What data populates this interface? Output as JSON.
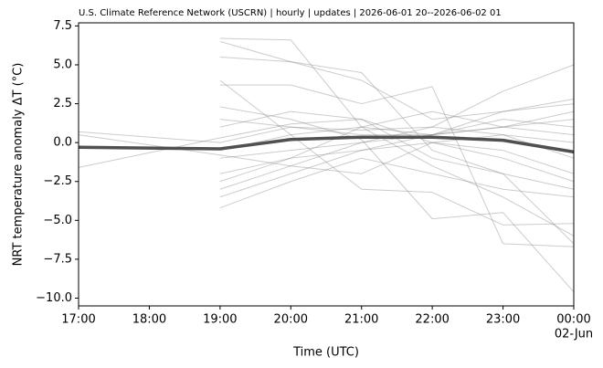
{
  "chart_data": {
    "type": "line",
    "title": "U.S. Climate Reference Network (USCRN) | hourly | updates | 2026-06-01 20--2026-06-02 01",
    "x_label": "Time (UTC)",
    "y_label": "NRT temperature anomaly  ΔT  (°C)",
    "x": [
      17,
      19,
      20,
      21,
      22,
      23,
      24
    ],
    "xlim": [
      17,
      24
    ],
    "xticks": [
      {
        "value": 17,
        "label": "17:00"
      },
      {
        "value": 18,
        "label": "18:00"
      },
      {
        "value": 19,
        "label": "19:00"
      },
      {
        "value": 20,
        "label": "20:00"
      },
      {
        "value": 21,
        "label": "21:00"
      },
      {
        "value": 22,
        "label": "22:00"
      },
      {
        "value": 23,
        "label": "23:00"
      },
      {
        "value": 24,
        "label": "00:00"
      }
    ],
    "x_tick_sublabel": "02-Jun",
    "ylim": [
      -10.5,
      7.7
    ],
    "yticks": [
      {
        "value": -10,
        "label": "−10.0"
      },
      {
        "value": -7.5,
        "label": "−7.5"
      },
      {
        "value": -5,
        "label": "−5.0"
      },
      {
        "value": -2.5,
        "label": "−2.5"
      },
      {
        "value": 0,
        "label": "0.0"
      },
      2.5,
      {
        "value": 5,
        "label": "5.0"
      },
      7.5
    ],
    "grid": false,
    "thin_opacity": 0.4,
    "series": [
      {
        "color": "#808080",
        "line_width": 1,
        "values": [
          null,
          6.7,
          6.6,
          1.0,
          0.5,
          1.0,
          1.5
        ]
      },
      {
        "color": "#808080",
        "line_width": 1,
        "values": [
          null,
          6.5,
          5.2,
          4.5,
          -0.5,
          -2.0,
          -6.5
        ]
      },
      {
        "color": "#808080",
        "line_width": 1,
        "values": [
          null,
          5.5,
          5.2,
          4.0,
          1.5,
          2.0,
          2.8
        ]
      },
      {
        "color": "#808080",
        "line_width": 1,
        "values": [
          null,
          4.0,
          0.5,
          -3.0,
          -3.2,
          -5.3,
          -5.2
        ]
      },
      {
        "color": "#808080",
        "line_width": 1,
        "values": [
          null,
          3.7,
          3.7,
          2.5,
          3.6,
          -6.5,
          -6.7
        ]
      },
      {
        "color": "#808080",
        "line_width": 1,
        "values": [
          0.7,
          0.0,
          1.0,
          0.5,
          0.5,
          1.0,
          2.0
        ]
      },
      {
        "color": "#808080",
        "line_width": 1,
        "values": [
          -1.6,
          0.3,
          1.2,
          1.5,
          -1.0,
          -2.0,
          -3.0
        ]
      },
      {
        "color": "#808080",
        "line_width": 1,
        "values": [
          null,
          2.3,
          1.5,
          0.2,
          -4.9,
          -4.5,
          -9.6
        ]
      },
      {
        "color": "#808080",
        "line_width": 1,
        "values": [
          null,
          1.5,
          1.0,
          0.8,
          1.0,
          3.3,
          5.0
        ]
      },
      {
        "color": "#808080",
        "line_width": 1,
        "values": [
          null,
          -1.0,
          -0.5,
          0.0,
          0.5,
          1.5,
          1.0
        ]
      },
      {
        "color": "#808080",
        "line_width": 1,
        "values": [
          null,
          -2.0,
          -1.0,
          -0.5,
          0.0,
          -0.5,
          -2.0
        ]
      },
      {
        "color": "#808080",
        "line_width": 1,
        "values": [
          null,
          -3.0,
          -1.5,
          0.0,
          1.0,
          0.5,
          0.0
        ]
      },
      {
        "color": "#808080",
        "line_width": 1,
        "values": [
          null,
          -4.2,
          -2.5,
          -1.0,
          -2.0,
          -3.0,
          -3.5
        ]
      },
      {
        "color": "#808080",
        "line_width": 1,
        "values": [
          null,
          -3.5,
          -2.0,
          -0.5,
          0.5,
          2.0,
          2.5
        ]
      },
      {
        "color": "#808080",
        "line_width": 1,
        "values": [
          null,
          -0.5,
          0.5,
          1.0,
          2.0,
          1.0,
          0.5
        ]
      },
      {
        "color": "#808080",
        "line_width": 1,
        "values": [
          0.5,
          -0.8,
          -1.5,
          -2.0,
          0.0,
          0.5,
          -1.0
        ]
      },
      {
        "color": "#808080",
        "line_width": 1,
        "values": [
          null,
          1.0,
          2.0,
          1.5,
          0.0,
          -1.0,
          -2.5
        ]
      },
      {
        "color": "#808080",
        "line_width": 1,
        "values": [
          null,
          -2.5,
          -1.0,
          1.0,
          -1.5,
          -3.5,
          -6.0
        ]
      },
      {
        "color": "#505050",
        "line_width": 3.5,
        "values": [
          -0.3,
          -0.4,
          0.2,
          0.35,
          0.35,
          0.15,
          -0.6
        ]
      }
    ]
  }
}
